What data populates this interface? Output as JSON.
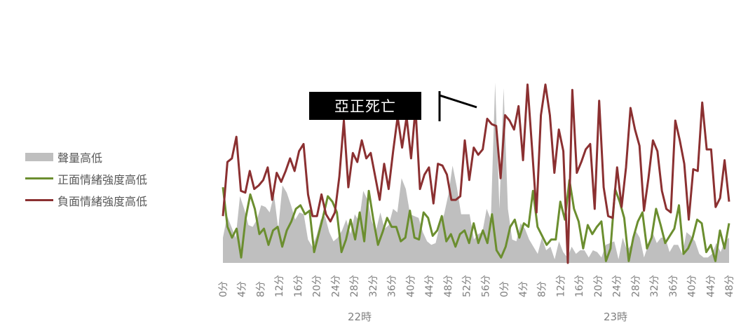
{
  "legend": {
    "volume_label": "聲量高低",
    "positive_label": "正面情緒強度高低",
    "negative_label": "負面情緒強度高低"
  },
  "annotation": {
    "text": "亞正死亡"
  },
  "colors": {
    "volume": "#bfbfbf",
    "positive": "#6b8e2f",
    "negative": "#8b3031",
    "axis_text": "#7f7f7f"
  },
  "chart_data": {
    "type": "line",
    "x_tick_labels": [
      "0分",
      "4分",
      "8分",
      "12分",
      "16分",
      "20分",
      "24分",
      "28分",
      "32分",
      "36分",
      "40分",
      "44分",
      "48分",
      "52分",
      "56分",
      "0分",
      "4分",
      "8分",
      "12分",
      "16分",
      "20分",
      "24分",
      "28分",
      "32分",
      "36分",
      "40分",
      "44分",
      "48分"
    ],
    "x_group_labels": [
      {
        "label": "22時",
        "minutes": "0-59"
      },
      {
        "label": "23時",
        "minutes": "0-49"
      }
    ],
    "ylim": [
      0,
      100
    ],
    "series": [
      {
        "name": "聲量高低",
        "style": "area",
        "values": [
          14,
          26,
          20,
          14,
          37,
          30,
          21,
          20,
          24,
          32,
          31,
          28,
          38,
          19,
          43,
          39,
          32,
          24,
          28,
          27,
          13,
          9,
          15,
          24,
          26,
          17,
          12,
          14,
          18,
          24,
          16,
          27,
          23,
          40,
          35,
          23,
          18,
          28,
          19,
          21,
          30,
          28,
          47,
          41,
          27,
          26,
          25,
          17,
          12,
          10,
          11,
          21,
          27,
          38,
          54,
          42,
          27,
          27,
          27,
          13,
          16,
          17,
          30,
          24,
          100,
          30,
          97,
          30,
          13,
          12,
          22,
          19,
          13,
          9,
          5,
          14,
          7,
          9,
          2,
          12,
          6,
          3,
          9,
          5,
          7,
          7,
          3,
          7,
          6,
          3,
          10,
          11,
          12,
          2,
          14,
          7,
          10,
          18,
          14,
          3,
          10,
          17,
          11,
          14,
          14,
          6,
          10,
          10,
          5,
          17,
          15,
          12,
          5,
          3,
          3,
          5,
          11,
          6,
          12,
          14
        ]
      },
      {
        "name": "正面情緒強度高低",
        "style": "line",
        "values": [
          42,
          20,
          14,
          19,
          3,
          25,
          38,
          30,
          16,
          19,
          10,
          18,
          20,
          9,
          18,
          23,
          30,
          32,
          27,
          29,
          6,
          16,
          26,
          37,
          34,
          28,
          6,
          13,
          24,
          13,
          28,
          12,
          40,
          24,
          10,
          17,
          25,
          20,
          20,
          12,
          14,
          29,
          14,
          13,
          28,
          25,
          15,
          18,
          26,
          12,
          16,
          9,
          16,
          18,
          11,
          22,
          11,
          18,
          11,
          27,
          7,
          3,
          9,
          20,
          24,
          14,
          22,
          20,
          40,
          20,
          15,
          10,
          13,
          13,
          34,
          24,
          46,
          30,
          23,
          8,
          21,
          16,
          20,
          23,
          1,
          8,
          41,
          34,
          25,
          1,
          14,
          23,
          28,
          8,
          14,
          30,
          21,
          11,
          15,
          19,
          32,
          5,
          8,
          14,
          24,
          22,
          6,
          10,
          1,
          18,
          8,
          22
        ]
      },
      {
        "name": "負面情緒強度高低",
        "style": "line",
        "values": [
          26,
          56,
          58,
          70,
          40,
          39,
          51,
          41,
          43,
          46,
          53,
          35,
          50,
          45,
          51,
          58,
          51,
          62,
          66,
          38,
          26,
          26,
          38,
          27,
          23,
          28,
          48,
          79,
          42,
          61,
          56,
          68,
          58,
          61,
          48,
          35,
          55,
          41,
          62,
          81,
          64,
          81,
          58,
          86,
          41,
          49,
          53,
          33,
          55,
          54,
          49,
          35,
          35,
          37,
          68,
          46,
          64,
          60,
          63,
          80,
          77,
          76,
          47,
          82,
          79,
          74,
          87,
          57,
          99,
          64,
          28,
          82,
          99,
          82,
          50,
          74,
          62,
          0,
          96,
          50,
          56,
          63,
          66,
          30,
          90,
          42,
          26,
          25,
          53,
          31,
          53,
          86,
          74,
          65,
          29,
          47,
          68,
          62,
          40,
          30,
          28,
          79,
          68,
          55,
          24,
          52,
          51,
          89,
          63,
          63,
          31,
          36,
          57,
          34
        ]
      }
    ]
  }
}
